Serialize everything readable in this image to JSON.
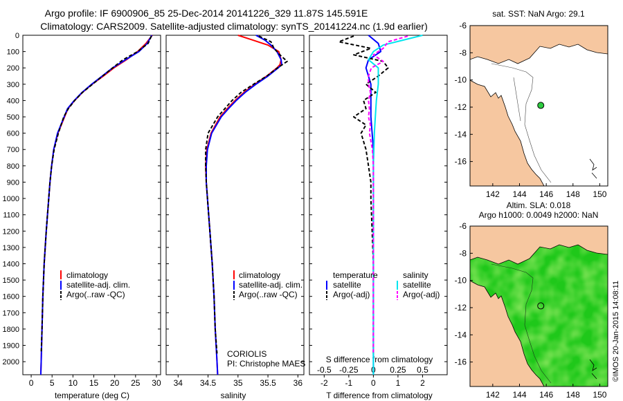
{
  "title_line1": "Argo profile: IF 6900906_85 25-Dec-2014 20141226_329 11.87S 145.591E",
  "title_line2": "Climatology: CARS2009. Satellite-adjusted climatology: synTS_20141224.nc (1.9d earlier)",
  "credit": "CORIOLIS",
  "pi": "PI: Christophe MAES",
  "stamp": "©IMOS 20-Jan-2015 14:08:11",
  "colors": {
    "clim": "#ff0000",
    "sat": "#0000ff",
    "argo": "#000000",
    "sat_diff": "#00e5ee",
    "argo_s_diff": "#ff00ff",
    "land": "#f6c7a0",
    "ocean": "#ffffff"
  },
  "chart_data": [
    {
      "type": "line",
      "name": "temperature-profile",
      "xlabel": "temperature (deg C)",
      "ylabel": "",
      "xlim": [
        -2,
        31
      ],
      "ylim": [
        2080,
        0
      ],
      "xticks": [
        0,
        5,
        10,
        15,
        20,
        25,
        30
      ],
      "yticks": [
        0,
        100,
        200,
        300,
        400,
        500,
        600,
        700,
        800,
        900,
        1000,
        1100,
        1200,
        1300,
        1400,
        1500,
        1600,
        1700,
        1800,
        1900,
        2000
      ],
      "legend": [
        "climatology",
        "satellite-adj. clim.",
        "Argo(..raw -QC)"
      ],
      "series": [
        {
          "name": "climatology",
          "depth": [
            0,
            50,
            100,
            150,
            200,
            250,
            300,
            350,
            400,
            450,
            500,
            600,
            700,
            800,
            900,
            1000,
            1200,
            1400,
            1600,
            1800,
            2000,
            2080
          ],
          "values": [
            29.0,
            27.5,
            25.5,
            22.8,
            19.8,
            17.3,
            14.6,
            12.3,
            10.4,
            8.8,
            8.0,
            6.4,
            5.4,
            4.9,
            4.5,
            4.2,
            3.6,
            3.1,
            2.8,
            2.6,
            2.4,
            2.3
          ]
        },
        {
          "name": "satellite-adj. clim.",
          "depth": [
            0,
            50,
            100,
            150,
            200,
            250,
            300,
            350,
            400,
            450,
            500,
            600,
            700,
            800,
            900,
            1000,
            1200,
            1400,
            1600,
            1800,
            2000,
            2080
          ],
          "values": [
            28.9,
            27.8,
            25.8,
            22.6,
            19.5,
            17.0,
            14.5,
            12.2,
            10.3,
            8.7,
            7.9,
            6.3,
            5.4,
            4.9,
            4.5,
            4.2,
            3.6,
            3.1,
            2.8,
            2.6,
            2.4,
            2.3
          ]
        },
        {
          "name": "Argo(..raw -QC)",
          "depth": [
            5,
            50,
            100,
            150,
            200,
            250,
            300,
            350,
            400,
            450,
            500,
            600,
            700,
            800,
            900,
            1000,
            1200,
            1400,
            1600,
            1800,
            1950
          ],
          "values": [
            28.8,
            28.0,
            25.5,
            22.0,
            19.5,
            17.1,
            14.7,
            12.3,
            10.4,
            8.9,
            7.8,
            6.5,
            5.5,
            4.9,
            4.5,
            4.2,
            3.6,
            3.1,
            2.8,
            2.6,
            2.4
          ]
        }
      ]
    },
    {
      "type": "line",
      "name": "salinity-profile",
      "xlabel": "salinity",
      "xlim": [
        33.8,
        36.1
      ],
      "ylim": [
        2080,
        0
      ],
      "xticks": [
        34,
        34.5,
        35,
        35.5,
        36
      ],
      "legend": [
        "climatology",
        "satellite-adj. clim.",
        "Argo(..raw -QC)"
      ],
      "series": [
        {
          "name": "climatology",
          "depth": [
            0,
            30,
            60,
            100,
            150,
            180,
            200,
            250,
            300,
            350,
            400,
            450,
            500,
            600,
            700,
            800,
            900,
            1000,
            1200,
            1400,
            1600,
            1800,
            2000,
            2080
          ],
          "values": [
            35.0,
            35.25,
            35.5,
            35.68,
            35.72,
            35.7,
            35.65,
            35.48,
            35.28,
            35.1,
            34.95,
            34.82,
            34.7,
            34.55,
            34.48,
            34.46,
            34.47,
            34.49,
            34.53,
            34.57,
            34.6,
            34.62,
            34.65,
            34.66
          ]
        },
        {
          "name": "satellite-adj. clim.",
          "depth": [
            0,
            30,
            60,
            100,
            150,
            180,
            200,
            250,
            300,
            350,
            400,
            450,
            500,
            600,
            700,
            800,
            900,
            1000,
            1200,
            1400,
            1600,
            1800,
            2000,
            2080
          ],
          "values": [
            35.3,
            35.45,
            35.55,
            35.65,
            35.72,
            35.73,
            35.67,
            35.5,
            35.3,
            35.12,
            34.97,
            34.84,
            34.72,
            34.56,
            34.49,
            34.47,
            34.47,
            34.49,
            34.53,
            34.57,
            34.6,
            34.62,
            34.65,
            34.66
          ]
        },
        {
          "name": "Argo(..raw -QC)",
          "depth": [
            5,
            40,
            80,
            120,
            160,
            200,
            250,
            300,
            350,
            400,
            450,
            500,
            550,
            600,
            700,
            800,
            900,
            1000,
            1200,
            1400,
            1600,
            1800,
            1950
          ],
          "values": [
            35.35,
            35.55,
            35.6,
            35.7,
            35.82,
            35.66,
            35.48,
            35.26,
            35.05,
            34.9,
            34.78,
            34.66,
            34.58,
            34.5,
            34.46,
            34.46,
            34.47,
            34.49,
            34.53,
            34.57,
            34.6,
            34.62,
            34.65
          ]
        }
      ]
    },
    {
      "type": "line",
      "name": "difference-profile",
      "xlabel": "T difference from climatology",
      "xlabel_top": "S difference from climatology",
      "xlim": [
        -2.6,
        3.0
      ],
      "ylim": [
        2080,
        0
      ],
      "xticks": [
        -2,
        -1,
        0,
        1,
        2
      ],
      "xticks_s": [
        -0.5,
        -0.25,
        0,
        0.25,
        0.5
      ],
      "legend_temperature_title": "temperature",
      "legend_salinity_title": "salinity",
      "legend": [
        "satellite",
        "Argo(-adj)",
        "satellite",
        "Argo(-adj)"
      ],
      "series": [
        {
          "name": "T satellite",
          "depth": [
            0,
            50,
            100,
            150,
            200,
            300,
            400,
            500,
            700,
            1000,
            1500,
            2000,
            2080
          ],
          "values": [
            -0.2,
            0.2,
            0.3,
            -0.2,
            -0.3,
            -0.1,
            -0.1,
            -0.1,
            0.0,
            0.0,
            0.0,
            0.0,
            0.0
          ]
        },
        {
          "name": "T Argo(-adj)",
          "depth": [
            5,
            40,
            80,
            120,
            160,
            200,
            250,
            300,
            350,
            400,
            450,
            500,
            550,
            600,
            700,
            800,
            900,
            1000,
            1200,
            1400,
            1600,
            1800,
            1950
          ],
          "values": [
            -0.8,
            -1.4,
            -0.1,
            -0.8,
            0.4,
            0.6,
            0.2,
            -0.3,
            0.1,
            -0.4,
            -0.3,
            -0.8,
            -0.3,
            -0.5,
            -0.3,
            -0.2,
            -0.1,
            -0.1,
            -0.05,
            0.0,
            0.0,
            0.0,
            0.0
          ]
        },
        {
          "name": "S satellite",
          "depth": [
            0,
            30,
            60,
            100,
            150,
            200,
            300,
            400,
            500,
            600,
            800,
            1000,
            1500,
            2000,
            2080
          ],
          "values": [
            0.5,
            0.3,
            0.1,
            0.0,
            -0.05,
            0.05,
            0.05,
            0.03,
            0.02,
            0.01,
            0.0,
            0.0,
            0.0,
            0.0,
            0.0
          ]
        },
        {
          "name": "S Argo(-adj)",
          "depth": [
            5,
            40,
            80,
            120,
            160,
            200,
            250,
            300,
            350,
            400,
            450,
            500,
            550,
            600,
            700,
            800,
            1000,
            1200,
            1500,
            1950
          ],
          "values": [
            0.35,
            0.15,
            0.1,
            0.0,
            0.1,
            -0.02,
            -0.05,
            -0.05,
            -0.03,
            -0.05,
            -0.04,
            -0.05,
            -0.03,
            -0.04,
            -0.01,
            0.0,
            0.0,
            0.0,
            0.0,
            0.0
          ]
        }
      ]
    },
    {
      "type": "map",
      "name": "sst-map",
      "title": "sat. SST: NaN Argo: 29.1",
      "xlim": [
        140.3,
        150.6
      ],
      "ylim": [
        -17.8,
        -6
      ],
      "xticks": [
        142,
        144,
        146,
        148,
        150
      ],
      "yticks": [
        -6,
        -8,
        -10,
        -12,
        -14,
        -16
      ],
      "float_lon": 145.591,
      "float_lat": -11.87
    },
    {
      "type": "map",
      "name": "sla-map",
      "title_line1": "Altim. SLA: 0.018",
      "title_line2": "Argo h1000: 0.0049 h2000: NaN",
      "xlim": [
        140.3,
        150.6
      ],
      "ylim": [
        -17.8,
        -6
      ],
      "xticks": [
        142,
        144,
        146,
        148,
        150
      ],
      "yticks": [
        -6,
        -8,
        -10,
        -12,
        -14,
        -16
      ],
      "float_lon": 145.591,
      "float_lat": -11.87
    }
  ]
}
